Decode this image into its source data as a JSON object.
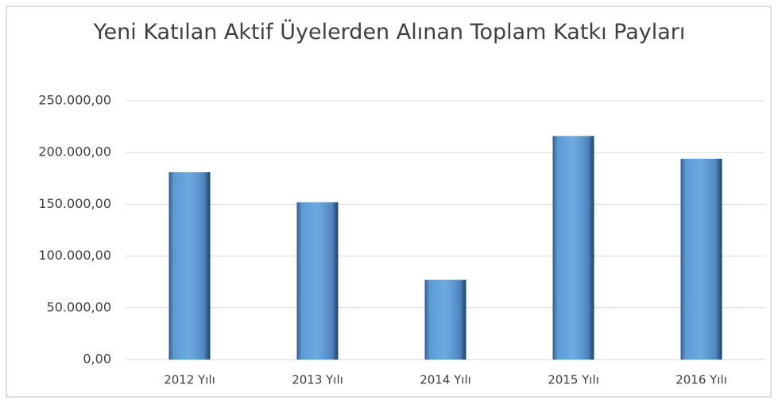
{
  "chart_data": {
    "type": "bar",
    "title": "Yeni Katılan Aktif Üyelerden Alınan Toplam Katkı Payları",
    "categories": [
      "2012 Yılı",
      "2013 Yılı",
      "2014 Yılı",
      "2015 Yılı",
      "2016 Yılı"
    ],
    "values": [
      181000,
      152000,
      77000,
      216000,
      194000
    ],
    "color": "#5b9bd5",
    "ylim": [
      0,
      250000
    ],
    "yticks": [
      {
        "value": 0,
        "label": "0,00"
      },
      {
        "value": 50000,
        "label": "50.000,00"
      },
      {
        "value": 100000,
        "label": "100.000,00"
      },
      {
        "value": 150000,
        "label": "150.000,00"
      },
      {
        "value": 200000,
        "label": "200.000,00"
      },
      {
        "value": 250000,
        "label": "250.000,00"
      }
    ],
    "grid": true
  }
}
